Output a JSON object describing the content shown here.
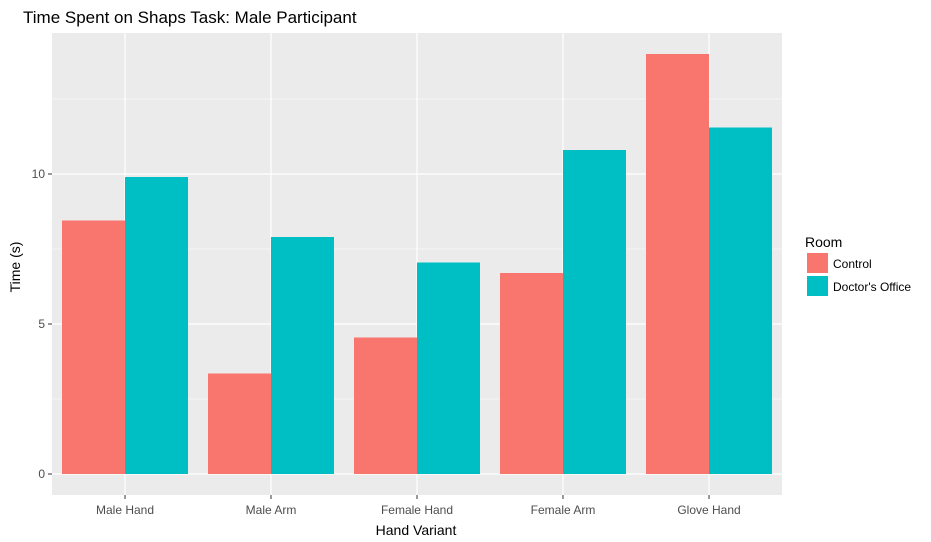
{
  "chart_data": {
    "type": "bar",
    "title": "Time Spent on Shaps Task: Male Participant",
    "xlabel": "Hand Variant",
    "ylabel": "Time (s)",
    "categories": [
      "Male Hand",
      "Male Arm",
      "Female Hand",
      "Female Arm",
      "Glove Hand"
    ],
    "series": [
      {
        "name": "Control",
        "color": "#F8766D",
        "values": [
          8.45,
          3.35,
          4.55,
          6.7,
          14.0
        ]
      },
      {
        "name": "Doctor's Office",
        "color": "#00BFC4",
        "values": [
          9.9,
          7.9,
          7.05,
          10.8,
          11.55
        ]
      }
    ],
    "ylim": [
      -0.7,
      14.7
    ],
    "yticks": [
      0,
      5,
      10
    ],
    "ytick_labels": [
      "0",
      "5",
      "10"
    ],
    "grid": true,
    "legend": {
      "title": "Room",
      "position": "right"
    },
    "panel_color": "#EBEBEB"
  }
}
